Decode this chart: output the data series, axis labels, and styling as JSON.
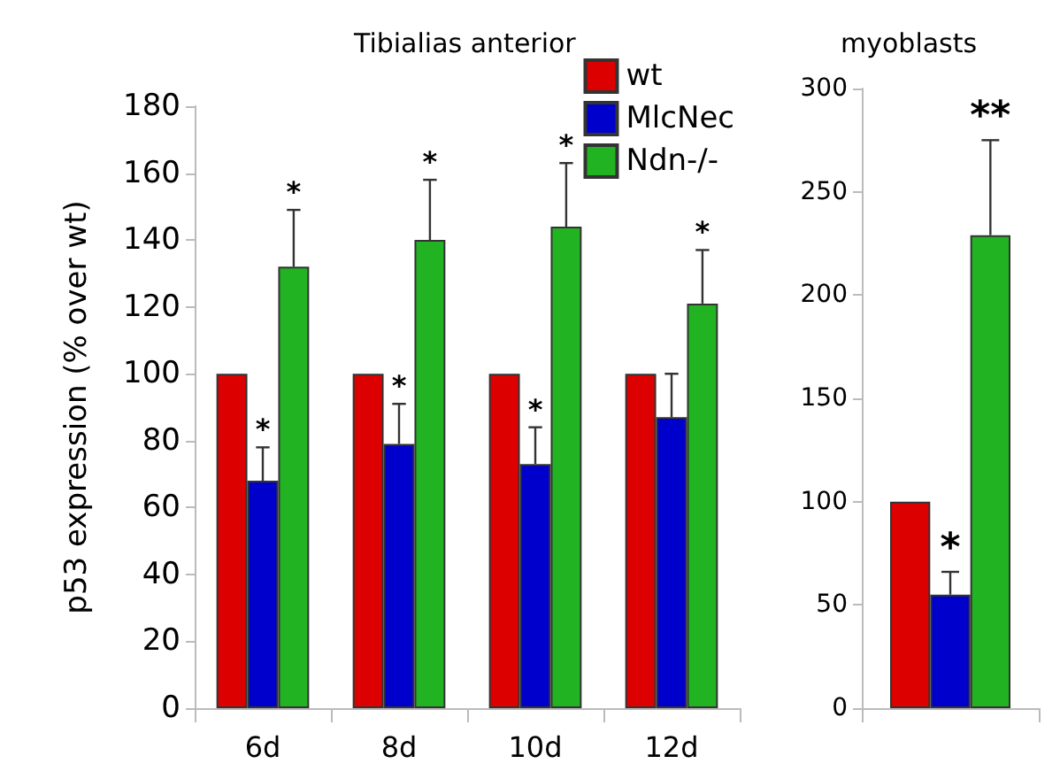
{
  "chart_data": [
    {
      "type": "bar",
      "title": "Tibialias anterior",
      "ylabel": "p53 expression (% over wt)",
      "categories": [
        "6d",
        "8d",
        "10d",
        "12d"
      ],
      "series": [
        {
          "name": "wt",
          "color": "#dd0000",
          "values": [
            100,
            100,
            100,
            100
          ]
        },
        {
          "name": "MlcNec",
          "color": "#0000cc",
          "values": [
            68,
            79,
            73,
            87
          ],
          "errors": [
            [
              68,
              78
            ],
            [
              79,
              91
            ],
            [
              73,
              84
            ],
            [
              87,
              100
            ]
          ]
        },
        {
          "name": "Ndn-/-",
          "color": "#22b322",
          "values": [
            132,
            140,
            144,
            121
          ],
          "errors": [
            [
              132,
              149
            ],
            [
              140,
              158
            ],
            [
              144,
              163
            ],
            [
              121,
              137
            ]
          ]
        }
      ],
      "ylim": [
        0,
        180
      ],
      "yticks": [
        0,
        20,
        40,
        60,
        80,
        100,
        120,
        140,
        160,
        180
      ],
      "grid": false,
      "legend": "top right",
      "annotations": [
        "*",
        "*",
        "*",
        "*",
        "*",
        "*",
        "*"
      ]
    },
    {
      "type": "bar",
      "title": "myoblasts",
      "categories": [
        null
      ],
      "series": [
        {
          "color": "#dd0000",
          "values": [
            100
          ]
        },
        {
          "color": "#0000cc",
          "values": [
            55
          ],
          "errors": [
            [
              55,
              66
            ]
          ]
        },
        {
          "color": "#22b322",
          "values": [
            229
          ],
          "errors": [
            [
              229,
              275
            ]
          ]
        }
      ],
      "ylim": [
        0,
        300
      ],
      "yticks": [
        0,
        50,
        100,
        150,
        200,
        250,
        300
      ],
      "grid": false,
      "legend": false,
      "annotations": [
        "*",
        "**"
      ]
    }
  ]
}
